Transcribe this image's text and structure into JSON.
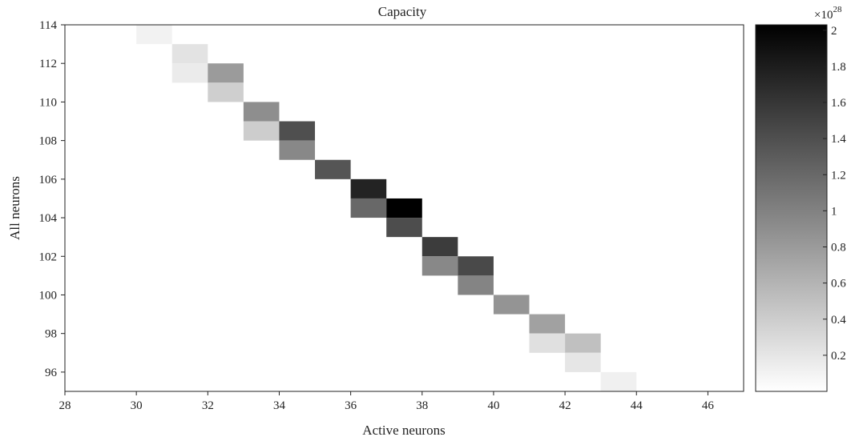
{
  "chart_data": {
    "type": "heatmap",
    "title": "Capacity",
    "xlabel": "Active neurons",
    "ylabel": "All neurons",
    "xlim": [
      28,
      47
    ],
    "ylim": [
      95,
      114
    ],
    "xticks": [
      28,
      30,
      32,
      34,
      36,
      38,
      40,
      42,
      44,
      46
    ],
    "yticks": [
      96,
      98,
      100,
      102,
      104,
      106,
      108,
      110,
      112,
      114
    ],
    "colormap": "gray_reversed",
    "colorbar": {
      "min": 0,
      "max": 2.03,
      "multiplier_label": "×10",
      "multiplier_exponent": "28",
      "ticks": [
        0.2,
        0.4,
        0.6,
        0.8,
        1,
        1.2,
        1.4,
        1.6,
        1.8,
        2
      ],
      "tick_labels": [
        "0.2",
        "0.4",
        "0.6",
        "0.8",
        "1",
        "1.2",
        "1.4",
        "1.6",
        "1.8",
        "2"
      ]
    },
    "cells": [
      {
        "x": 30,
        "y": 113,
        "value": 0.1
      },
      {
        "x": 31,
        "y": 112,
        "value": 0.22
      },
      {
        "x": 31,
        "y": 111,
        "value": 0.16
      },
      {
        "x": 32,
        "y": 111,
        "value": 0.8
      },
      {
        "x": 32,
        "y": 110,
        "value": 0.38
      },
      {
        "x": 33,
        "y": 109,
        "value": 0.9
      },
      {
        "x": 33,
        "y": 108,
        "value": 0.4
      },
      {
        "x": 34,
        "y": 108,
        "value": 1.4
      },
      {
        "x": 34,
        "y": 107,
        "value": 0.95
      },
      {
        "x": 35,
        "y": 106,
        "value": 1.35
      },
      {
        "x": 36,
        "y": 105,
        "value": 1.75
      },
      {
        "x": 36,
        "y": 104,
        "value": 1.2
      },
      {
        "x": 37,
        "y": 104,
        "value": 2.03
      },
      {
        "x": 37,
        "y": 103,
        "value": 1.42
      },
      {
        "x": 38,
        "y": 102,
        "value": 1.55
      },
      {
        "x": 38,
        "y": 101,
        "value": 0.95
      },
      {
        "x": 39,
        "y": 101,
        "value": 1.45
      },
      {
        "x": 39,
        "y": 100,
        "value": 0.98
      },
      {
        "x": 40,
        "y": 99,
        "value": 0.85
      },
      {
        "x": 41,
        "y": 98,
        "value": 0.75
      },
      {
        "x": 41,
        "y": 97,
        "value": 0.25
      },
      {
        "x": 42,
        "y": 97,
        "value": 0.5
      },
      {
        "x": 42,
        "y": 96,
        "value": 0.2
      },
      {
        "x": 43,
        "y": 95,
        "value": 0.12
      }
    ]
  }
}
